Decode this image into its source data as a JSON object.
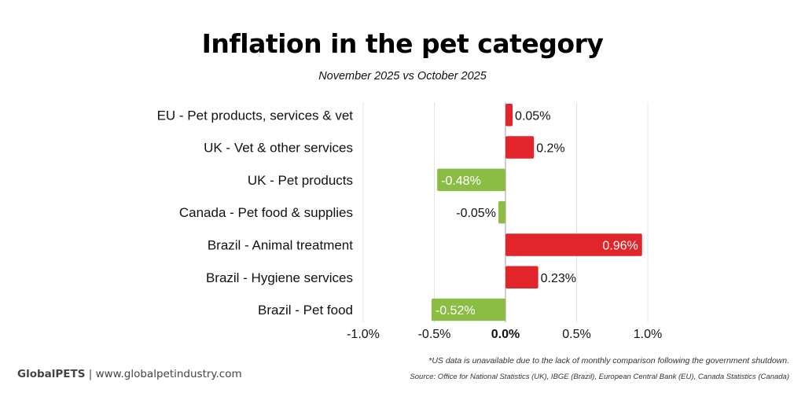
{
  "chart_data": {
    "type": "bar",
    "orientation": "horizontal",
    "title": "Inflation in the pet category",
    "subtitle": "November 2025 vs October 2025",
    "xlabel": "",
    "ylabel": "",
    "xlim": [
      -1.0,
      1.0
    ],
    "xticks": [
      -1.0,
      -0.5,
      0.0,
      0.5,
      1.0
    ],
    "xtick_labels": [
      "-1.0%",
      "-0.5%",
      "0.0%",
      "0.5%",
      "1.0%"
    ],
    "grid": true,
    "categories": [
      "EU - Pet products, services & vet",
      "UK - Vet & other services",
      "UK - Pet products",
      "Canada - Pet food & supplies",
      "Brazil - Animal treatment",
      "Brazil - Hygiene services",
      "Brazil - Pet food"
    ],
    "values": [
      0.05,
      0.2,
      -0.48,
      -0.05,
      0.96,
      0.23,
      -0.52
    ],
    "data_labels": [
      "0.05%",
      "0.2%",
      "-0.48%",
      "-0.05%",
      "0.96%",
      "0.23%",
      "-0.52%"
    ],
    "colors": {
      "positive": "#E2252B",
      "negative": "#8BBD44"
    }
  },
  "footer": {
    "brand": "GlobalPETS",
    "separator": "|",
    "url": "www.globalpetindustry.com",
    "footnote": "*US data is unavailable due to the lack of monthly comparison following the government shutdown.",
    "source": "Source: Office for National Statistics (UK), IBGE (Brazil), European Central Bank (EU), Canada Statistics (Canada)"
  }
}
